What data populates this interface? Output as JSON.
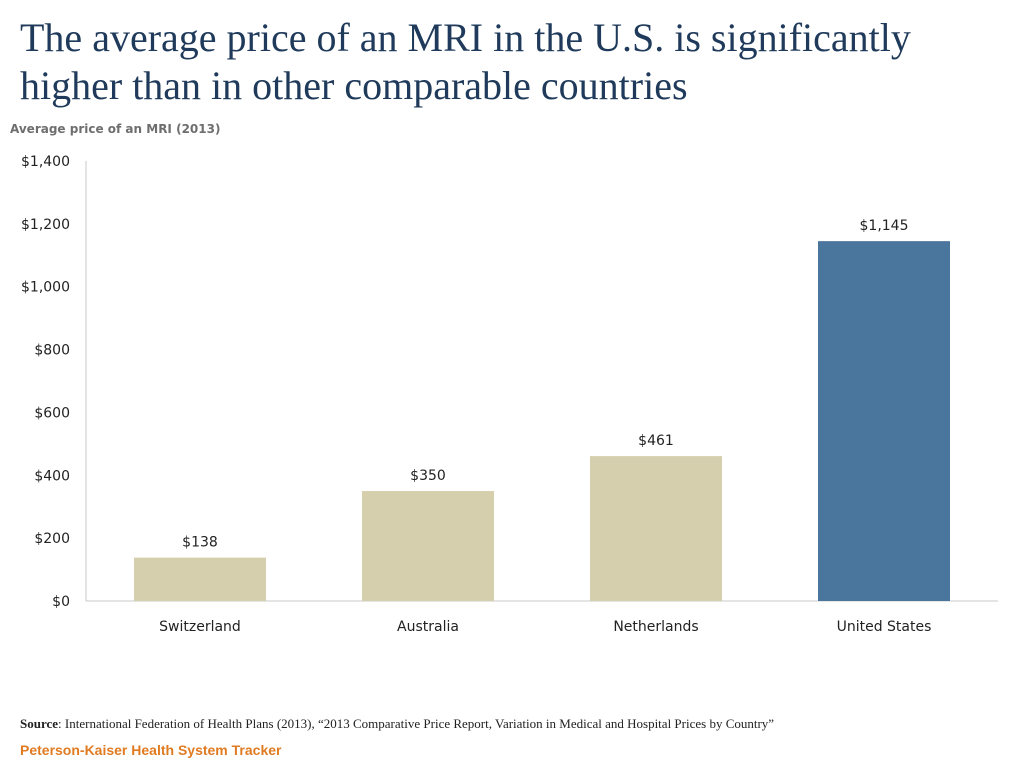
{
  "title": "The average price of an MRI in the U.S. is significantly higher than in other comparable countries",
  "subtitle": "Average price of an MRI (2013)",
  "chart_data": {
    "type": "bar",
    "categories": [
      "Switzerland",
      "Australia",
      "Netherlands",
      "United States"
    ],
    "values": [
      138,
      350,
      461,
      1145
    ],
    "data_labels": [
      "$138",
      "$350",
      "$461",
      "$1,145"
    ],
    "colors": [
      "#d6cfae",
      "#d6cfae",
      "#d6cfae",
      "#4a759c"
    ],
    "ylim": [
      0,
      1400
    ],
    "yticks": [
      0,
      200,
      400,
      600,
      800,
      1000,
      1200,
      1400
    ],
    "ytick_labels": [
      "$0",
      "$200",
      "$400",
      "$600",
      "$800",
      "$1,000",
      "$1,200",
      "$1,400"
    ],
    "title": "Average price of an MRI (2013)",
    "xlabel": "",
    "ylabel": ""
  },
  "source": {
    "label": "Source",
    "text": ": International Federation of Health Plans (2013), “2013 Comparative Price Report, Variation in Medical and Hospital Prices by Country”"
  },
  "brand": "Peterson-Kaiser Health System Tracker",
  "colors": {
    "title": "#1f3a5a",
    "brand": "#e07b22",
    "axis": "#c8c8c8"
  }
}
